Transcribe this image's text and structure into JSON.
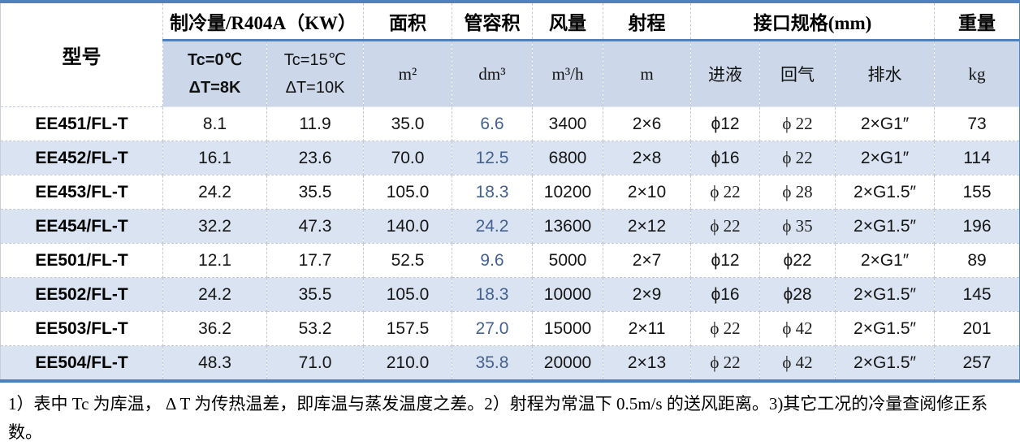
{
  "table": {
    "header": {
      "model": "型号",
      "capacity_group": "制冷量/R404A（KW）",
      "capacity_sub1_line1": "Tc=0℃",
      "capacity_sub1_line2": "ΔT=8K",
      "capacity_sub2_line1": "Tc=15℃",
      "capacity_sub2_line2": "ΔT=10K",
      "area": "面积",
      "area_unit": "m²",
      "tube_volume": "管容积",
      "tube_volume_unit": "dm³",
      "air_flow": "风量",
      "air_flow_unit": "m³/h",
      "throw": "射程",
      "throw_unit": "m",
      "connection_group": "接口规格(mm)",
      "liquid_in": "进液",
      "gas_return": "回气",
      "drain": "排水",
      "weight": "重量",
      "weight_unit": "kg"
    },
    "rows": [
      {
        "model": "EE451/FL-T",
        "cap_tc0": "8.1",
        "cap_tc15": "11.9",
        "area": "35.0",
        "tube": "6.6",
        "air": "3400",
        "throw": "2×6",
        "liquid": "ϕ12",
        "gas": "ϕ 22",
        "drain": "2×G1″",
        "weight": "73"
      },
      {
        "model": "EE452/FL-T",
        "cap_tc0": "16.1",
        "cap_tc15": "23.6",
        "area": "70.0",
        "tube": "12.5",
        "air": "6800",
        "throw": "2×8",
        "liquid": "ϕ16",
        "gas": "ϕ 22",
        "drain": "2×G1″",
        "weight": "114"
      },
      {
        "model": "EE453/FL-T",
        "cap_tc0": "24.2",
        "cap_tc15": "35.5",
        "area": "105.0",
        "tube": "18.3",
        "air": "10200",
        "throw": "2×10",
        "liquid": "ϕ 22",
        "gas": "ϕ 28",
        "drain": "2×G1.5″",
        "weight": "155"
      },
      {
        "model": "EE454/FL-T",
        "cap_tc0": "32.2",
        "cap_tc15": "47.3",
        "area": "140.0",
        "tube": "24.2",
        "air": "13600",
        "throw": "2×12",
        "liquid": "ϕ 22",
        "gas": "ϕ 35",
        "drain": "2×G1.5″",
        "weight": "196"
      },
      {
        "model": "EE501/FL-T",
        "cap_tc0": "12.1",
        "cap_tc15": "17.7",
        "area": "52.5",
        "tube": "9.6",
        "air": "5000",
        "throw": "2×7",
        "liquid": "ϕ12",
        "gas": "ϕ22",
        "drain": "2×G1″",
        "weight": "89"
      },
      {
        "model": "EE502/FL-T",
        "cap_tc0": "24.2",
        "cap_tc15": "35.5",
        "area": "105.0",
        "tube": "18.3",
        "air": "10000",
        "throw": "2×9",
        "liquid": "ϕ16",
        "gas": "ϕ28",
        "drain": "2×G1.5″",
        "weight": "145"
      },
      {
        "model": "EE503/FL-T",
        "cap_tc0": "36.2",
        "cap_tc15": "53.2",
        "area": "157.5",
        "tube": "27.0",
        "air": "15000",
        "throw": "2×11",
        "liquid": "ϕ 22",
        "gas": "ϕ 42",
        "drain": "2×G1.5″",
        "weight": "201"
      },
      {
        "model": "EE504/FL-T",
        "cap_tc0": "48.3",
        "cap_tc15": "71.0",
        "area": "210.0",
        "tube": "35.8",
        "air": "20000",
        "throw": "2×13",
        "liquid": "ϕ 22",
        "gas": "ϕ 42",
        "drain": "2×G1.5″",
        "weight": "257"
      }
    ]
  },
  "footnote": "1）表中 Tc 为库温， Δ T 为传热温差，即库温与蒸发温度之差。2）射程为常温下 0.5m/s 的送风距离。3)其它工况的冷量查阅修正系数。",
  "colors": {
    "accent_border": "#4f81bd",
    "subheader_bg": "#ccd8ea",
    "stripe_bg": "#dae3f1",
    "tube_value_text": "#44618f",
    "grid_line": "#c3cad6"
  }
}
